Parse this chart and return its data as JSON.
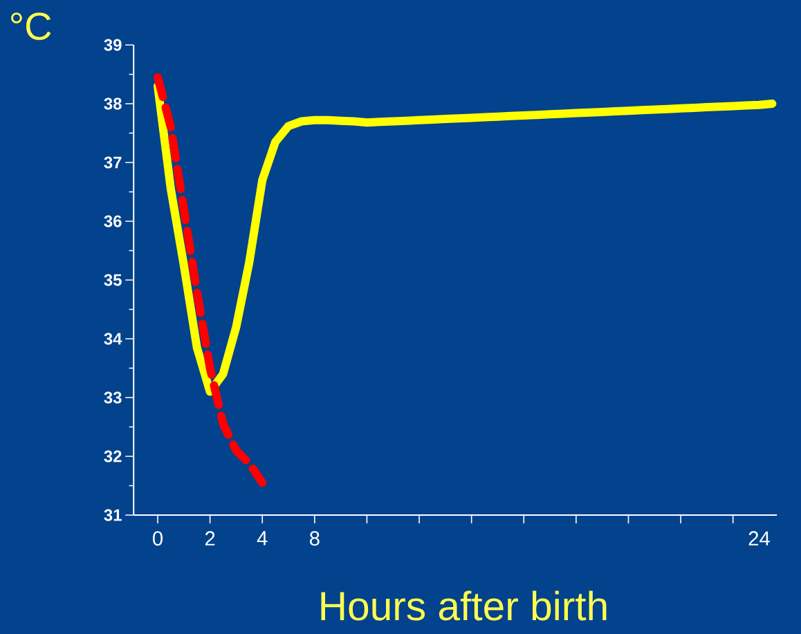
{
  "chart_data": {
    "type": "line",
    "xlabel": "Hours after birth",
    "ylabel": "°C",
    "categories": [
      "0",
      null,
      null,
      null,
      "2",
      null,
      null,
      null,
      "4",
      null,
      null,
      null,
      "8",
      null,
      null,
      null,
      null,
      null,
      null,
      null,
      null,
      null,
      null,
      null,
      null,
      null,
      null,
      null,
      null,
      null,
      null,
      null,
      null,
      null,
      null,
      null,
      null,
      null,
      null,
      null,
      null,
      null,
      null,
      null,
      null,
      null,
      "24",
      null
    ],
    "ylim": [
      31,
      39
    ],
    "yticks": [
      31,
      32,
      33,
      34,
      35,
      36,
      37,
      38,
      39
    ],
    "grid": false,
    "marker": "none",
    "series": [
      {
        "color": "#ffff00",
        "line_style": "solid",
        "values": [
          38.3,
          36.55,
          35.25,
          33.85,
          33.1,
          33.4,
          34.2,
          35.3,
          36.7,
          37.35,
          37.62,
          37.7,
          37.72,
          37.72,
          37.71,
          37.7,
          37.68,
          37.69,
          37.7,
          37.71,
          37.72,
          37.73,
          37.74,
          37.75,
          37.76,
          37.77,
          37.78,
          37.79,
          37.8,
          37.81,
          37.82,
          37.83,
          37.84,
          37.85,
          37.86,
          37.87,
          37.88,
          37.89,
          37.9,
          37.91,
          37.92,
          37.93,
          37.94,
          37.95,
          37.96,
          37.97,
          37.98,
          38.0
        ]
      },
      {
        "color": "#ff0000",
        "line_style": "dashed",
        "values": [
          38.45,
          37.6,
          36.2,
          34.8,
          33.5,
          32.55,
          32.1,
          31.88,
          31.55,
          null,
          null,
          null,
          null,
          null,
          null,
          null,
          null,
          null,
          null,
          null,
          null,
          null,
          null,
          null,
          null,
          null,
          null,
          null,
          null,
          null,
          null,
          null,
          null,
          null,
          null,
          null,
          null,
          null,
          null,
          null,
          null,
          null,
          null,
          null,
          null,
          null,
          null,
          null
        ]
      }
    ]
  }
}
